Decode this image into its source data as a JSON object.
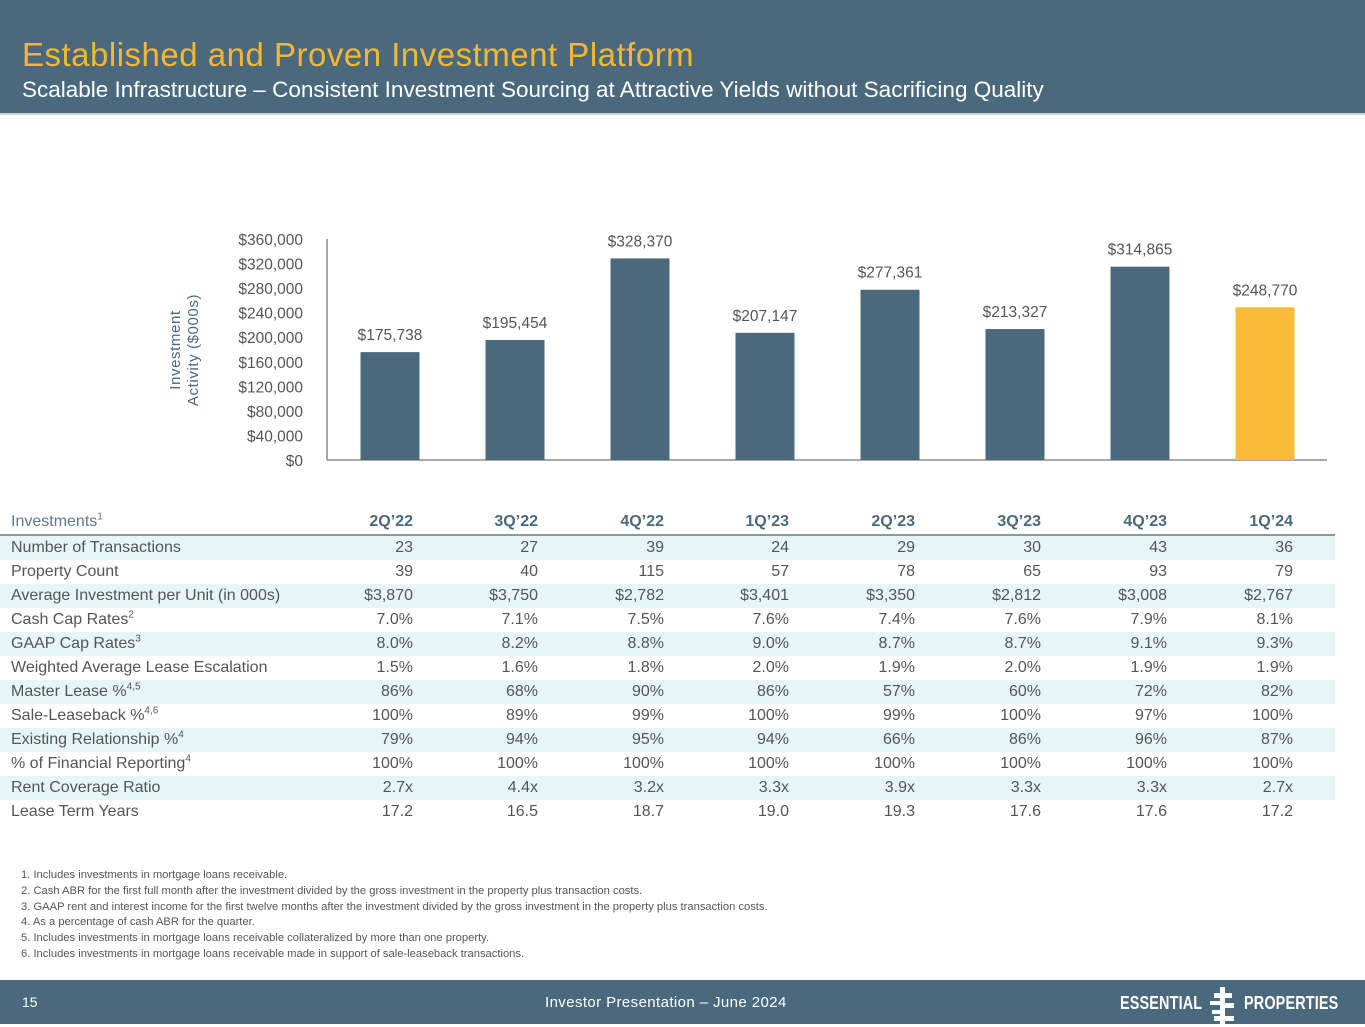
{
  "header": {
    "title": "Established and Proven Investment Platform",
    "subtitle": "Scalable Infrastructure – Consistent Investment Sourcing at Attractive Yields without Sacrificing Quality"
  },
  "colors": {
    "header_bg": "#4b697d",
    "title_gold": "#f5b731",
    "bar_primary": "#4b697d",
    "bar_highlight": "#fbbb37",
    "row_alt": "#e6f5f7"
  },
  "chart_data": {
    "type": "bar",
    "title": "",
    "xlabel": "",
    "ylabel": "Investment Activity ($000s)",
    "ylabel_lines": [
      "Investment",
      "Activity ($000s)"
    ],
    "categories": [
      "2Q'22",
      "3Q'22",
      "4Q'22",
      "1Q'23",
      "2Q'23",
      "3Q'23",
      "4Q'23",
      "1Q'24"
    ],
    "values": [
      175738,
      195454,
      328370,
      207147,
      277361,
      213327,
      314865,
      248770
    ],
    "data_labels": [
      "$175,738",
      "$195,454",
      "$328,370",
      "$207,147",
      "$277,361",
      "$213,327",
      "$314,865",
      "$248,770"
    ],
    "highlight_index": 7,
    "ylim": [
      0,
      360000
    ],
    "yticks": [
      0,
      40000,
      80000,
      120000,
      160000,
      200000,
      240000,
      280000,
      320000,
      360000
    ],
    "ytick_labels": [
      "$0",
      "$40,000",
      "$80,000",
      "$120,000",
      "$160,000",
      "$200,000",
      "$240,000",
      "$280,000",
      "$320,000",
      "$360,000"
    ],
    "grid": false,
    "legend": "none"
  },
  "table": {
    "header_label": "Investments",
    "header_label_sup": "1",
    "columns": [
      "2Q’22",
      "3Q’22",
      "4Q’22",
      "1Q’23",
      "2Q’23",
      "3Q’23",
      "4Q’23",
      "1Q’24"
    ],
    "rows": [
      {
        "label": "Number of Transactions",
        "sup": "",
        "values": [
          "23",
          "27",
          "39",
          "24",
          "29",
          "30",
          "43",
          "36"
        ]
      },
      {
        "label": "Property Count",
        "sup": "",
        "values": [
          "39",
          "40",
          "115",
          "57",
          "78",
          "65",
          "93",
          "79"
        ]
      },
      {
        "label": "Average Investment per Unit (in 000s)",
        "sup": "",
        "values": [
          "$3,870",
          "$3,750",
          "$2,782",
          "$3,401",
          "$3,350",
          "$2,812",
          "$3,008",
          "$2,767"
        ]
      },
      {
        "label": "Cash Cap Rates",
        "sup": "2",
        "values": [
          "7.0%",
          "7.1%",
          "7.5%",
          "7.6%",
          "7.4%",
          "7.6%",
          "7.9%",
          "8.1%"
        ]
      },
      {
        "label": "GAAP Cap Rates",
        "sup": "3",
        "values": [
          "8.0%",
          "8.2%",
          "8.8%",
          "9.0%",
          "8.7%",
          "8.7%",
          "9.1%",
          "9.3%"
        ]
      },
      {
        "label": "Weighted Average Lease Escalation",
        "sup": "",
        "values": [
          "1.5%",
          "1.6%",
          "1.8%",
          "2.0%",
          "1.9%",
          "2.0%",
          "1.9%",
          "1.9%"
        ]
      },
      {
        "label": "Master Lease %",
        "sup": "4,5",
        "values": [
          "86%",
          "68%",
          "90%",
          "86%",
          "57%",
          "60%",
          "72%",
          "82%"
        ]
      },
      {
        "label": "Sale-Leaseback %",
        "sup": "4,6",
        "values": [
          "100%",
          "89%",
          "99%",
          "100%",
          "99%",
          "100%",
          "97%",
          "100%"
        ]
      },
      {
        "label": "Existing Relationship %",
        "sup": "4",
        "values": [
          "79%",
          "94%",
          "95%",
          "94%",
          "66%",
          "86%",
          "96%",
          "87%"
        ]
      },
      {
        "label": "% of Financial Reporting",
        "sup": "4",
        "values": [
          "100%",
          "100%",
          "100%",
          "100%",
          "100%",
          "100%",
          "100%",
          "100%"
        ]
      },
      {
        "label": "Rent Coverage Ratio",
        "sup": "",
        "values": [
          "2.7x",
          "4.4x",
          "3.2x",
          "3.3x",
          "3.9x",
          "3.3x",
          "3.3x",
          "2.7x"
        ]
      },
      {
        "label": "Lease Term Years",
        "sup": "",
        "values": [
          "17.2",
          "16.5",
          "18.7",
          "19.0",
          "19.3",
          "17.6",
          "17.6",
          "17.2"
        ]
      }
    ]
  },
  "footnotes": [
    "1. Includes investments in mortgage loans receivable.",
    "2. Cash ABR for the first full month after the investment divided by the gross investment in the property plus transaction costs.",
    "3. GAAP rent and interest income for the first twelve months after the investment divided by the gross investment in the property plus transaction costs.",
    "4. As a percentage of cash ABR for the quarter.",
    "5. Includes investments in mortgage loans receivable collateralized by more than one property.",
    "6. Includes investments in mortgage loans receivable made in support of sale-leaseback transactions."
  ],
  "footer": {
    "page_number": "15",
    "center_text": "Investor Presentation – June 2024",
    "logo_left": "ESSENTIAL",
    "logo_right": "PROPERTIES",
    "logo_icon": "essential-properties-logo-mark"
  }
}
